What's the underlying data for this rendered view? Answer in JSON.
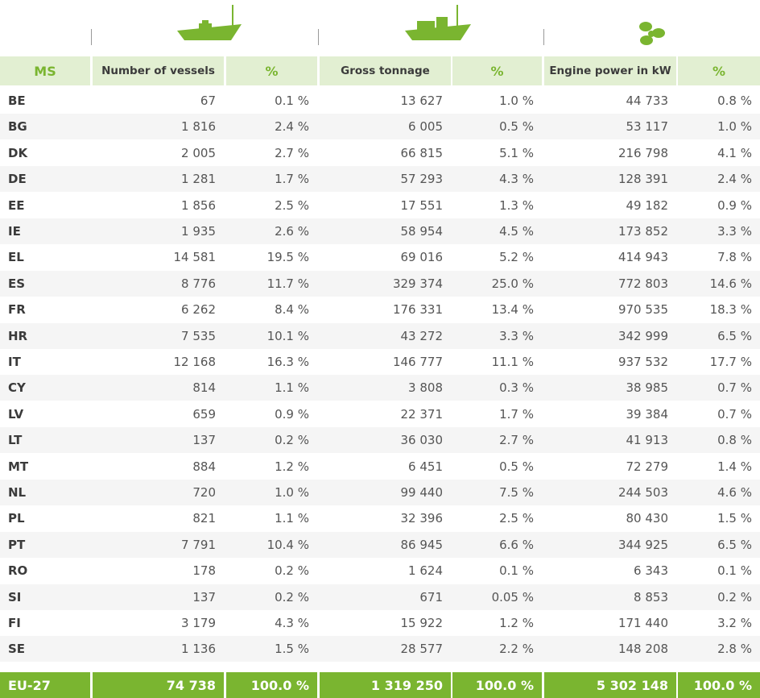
{
  "table": {
    "header": [
      "MS",
      "Number of vessels",
      "%",
      "Gross tonnage",
      "%",
      "Engine power in kW",
      "%"
    ],
    "rows": [
      [
        "BE",
        "67",
        "0.1 %",
        "13 627",
        "1.0 %",
        "44 733",
        "0.8 %"
      ],
      [
        "BG",
        "1 816",
        "2.4 %",
        "6 005",
        "0.5 %",
        "53 117",
        "1.0 %"
      ],
      [
        "DK",
        "2 005",
        "2.7 %",
        "66 815",
        "5.1 %",
        "216 798",
        "4.1 %"
      ],
      [
        "DE",
        "1 281",
        "1.7 %",
        "57 293",
        "4.3 %",
        "128 391",
        "2.4 %"
      ],
      [
        "EE",
        "1 856",
        "2.5 %",
        "17 551",
        "1.3 %",
        "49 182",
        "0.9 %"
      ],
      [
        "IE",
        "1 935",
        "2.6 %",
        "58 954",
        "4.5 %",
        "173 852",
        "3.3 %"
      ],
      [
        "EL",
        "14 581",
        "19.5 %",
        "69 016",
        "5.2 %",
        "414 943",
        "7.8 %"
      ],
      [
        "ES",
        "8 776",
        "11.7 %",
        "329 374",
        "25.0 %",
        "772 803",
        "14.6 %"
      ],
      [
        "FR",
        "6 262",
        "8.4 %",
        "176 331",
        "13.4 %",
        "970 535",
        "18.3 %"
      ],
      [
        "HR",
        "7 535",
        "10.1 %",
        "43 272",
        "3.3 %",
        "342 999",
        "6.5 %"
      ],
      [
        "IT",
        "12 168",
        "16.3 %",
        "146 777",
        "11.1 %",
        "937 532",
        "17.7 %"
      ],
      [
        "CY",
        "814",
        "1.1 %",
        "3 808",
        "0.3 %",
        "38 985",
        "0.7 %"
      ],
      [
        "LV",
        "659",
        "0.9 %",
        "22 371",
        "1.7 %",
        "39 384",
        "0.7 %"
      ],
      [
        "LT",
        "137",
        "0.2 %",
        "36 030",
        "2.7 %",
        "41 913",
        "0.8 %"
      ],
      [
        "MT",
        "884",
        "1.2 %",
        "6 451",
        "0.5 %",
        "72 279",
        "1.4 %"
      ],
      [
        "NL",
        "720",
        "1.0 %",
        "99 440",
        "7.5 %",
        "244 503",
        "4.6 %"
      ],
      [
        "PL",
        "821",
        "1.1 %",
        "32 396",
        "2.5 %",
        "80 430",
        "1.5 %"
      ],
      [
        "PT",
        "7 791",
        "10.4 %",
        "86 945",
        "6.6 %",
        "344 925",
        "6.5 %"
      ],
      [
        "RO",
        "178",
        "0.2 %",
        "1 624",
        "0.1 %",
        "6 343",
        "0.1 %"
      ],
      [
        "SI",
        "137",
        "0.2 %",
        "671",
        "0.05 %",
        "8 853",
        "0.2 %"
      ],
      [
        "FI",
        "3 179",
        "4.3 %",
        "15 922",
        "1.2 %",
        "171 440",
        "3.2 %"
      ],
      [
        "SE",
        "1 136",
        "1.5 %",
        "28 577",
        "2.2 %",
        "148 208",
        "2.8 %"
      ]
    ],
    "total": [
      "EU-27",
      "74 738",
      "100.0 %",
      "1 319 250",
      "100.0 %",
      "5 302 148",
      "100.0 %"
    ]
  }
}
